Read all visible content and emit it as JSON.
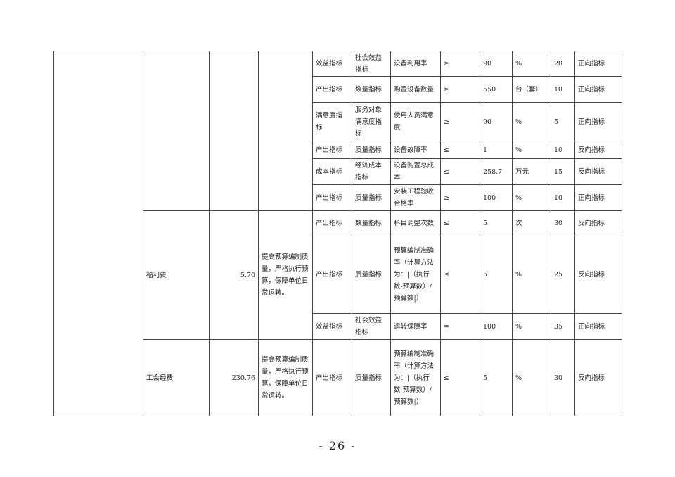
{
  "rows": [
    {
      "l1": "效益指标",
      "l2": "社会效益指标",
      "name": "设备利用率",
      "op": "≥",
      "value": "90",
      "unit": "%",
      "weight": "20",
      "dir": "正向指标"
    },
    {
      "l1": "产出指标",
      "l2": "数量指标",
      "name": "购置设备数量",
      "op": "≥",
      "value": "550",
      "unit": "台（套）",
      "weight": "10",
      "dir": "正向指标"
    },
    {
      "l1": "满意度指标",
      "l2": "服务对象满意度指标",
      "name": "使用人员满意度",
      "op": "≥",
      "value": "90",
      "unit": "%",
      "weight": "5",
      "dir": "正向指标"
    },
    {
      "l1": "产出指标",
      "l2": "质量指标",
      "name": "设备故障率",
      "op": "≤",
      "value": "1",
      "unit": "%",
      "weight": "10",
      "dir": "反向指标"
    },
    {
      "l1": "成本指标",
      "l2": "经济成本指标",
      "name": "设备购置总成本",
      "op": "≤",
      "value": "258.7",
      "unit": "万元",
      "weight": "15",
      "dir": "反向指标"
    },
    {
      "l1": "产出指标",
      "l2": "质量指标",
      "name": "安装工程验收合格率",
      "op": "≥",
      "value": "100",
      "unit": "%",
      "weight": "10",
      "dir": "正向指标"
    },
    {
      "l1": "产出指标",
      "l2": "数量指标",
      "name": "科目调整次数",
      "op": "≤",
      "value": "5",
      "unit": "次",
      "weight": "30",
      "dir": "反向指标"
    },
    {
      "l1": "产出指标",
      "l2": "质量指标",
      "name": "预算编制准确率（计算方法为：|（执行数-预算数）/预算数|）",
      "op": "≤",
      "value": "5",
      "unit": "%",
      "weight": "25",
      "dir": "反向指标"
    },
    {
      "l1": "效益指标",
      "l2": "社会效益指标",
      "name": "运转保障率",
      "op": "=",
      "value": "100",
      "unit": "%",
      "weight": "35",
      "dir": "正向指标"
    },
    {
      "l1": "产出指标",
      "l2": "质量指标",
      "name": "预算编制准确率（计算方法为：|（执行数-预算数）/预算数|）",
      "op": "≤",
      "value": "5",
      "unit": "%",
      "weight": "30",
      "dir": "反向指标"
    }
  ],
  "projects": [
    {
      "name": "福利费",
      "amount": "5.70",
      "goal": "提高预算编制质量，严格执行预算，保障单位日常运转。"
    },
    {
      "name": "工会经费",
      "amount": "230.76",
      "goal": "提高预算编制质量，严格执行预算，保障单位日常运转。"
    }
  ],
  "page_number": "- 26 -"
}
